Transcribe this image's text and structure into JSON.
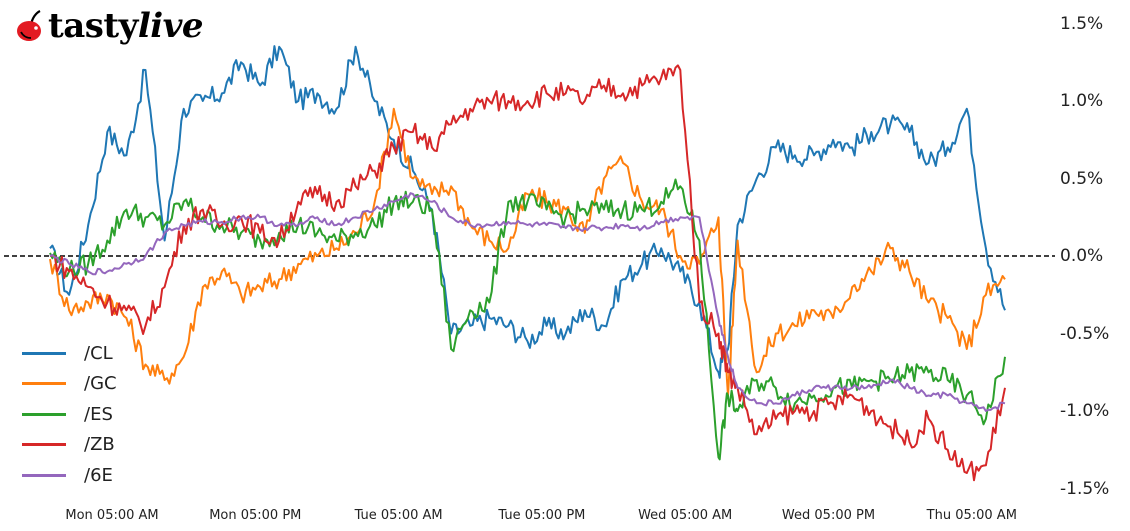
{
  "brand": {
    "name_part1": "tasty",
    "name_part2": "live",
    "cherry_color": "#e31b23"
  },
  "chart_data": {
    "type": "line",
    "title": "",
    "xlabel": "",
    "ylabel": "",
    "ylim": [
      -1.5,
      1.5
    ],
    "y_unit": "%",
    "grid": false,
    "legend_position": "lower left",
    "reference_line": {
      "y": 0.0,
      "style": "dashed",
      "color": "#000000"
    },
    "y_ticks": [
      "1.5%",
      "1.0%",
      "0.5%",
      "0.0%",
      "-0.5%",
      "-1.0%",
      "-1.5%"
    ],
    "x_ticks": [
      "Mon 05:00 AM",
      "Mon 05:00 PM",
      "Tue 05:00 AM",
      "Tue 05:00 PM",
      "Wed 05:00 AM",
      "Wed 05:00 PM",
      "Thu 05:00 AM"
    ],
    "x_tick_positions": [
      0.0625,
      0.2126,
      0.3627,
      0.5128,
      0.6629,
      0.813,
      0.9631
    ],
    "x": [
      0.0,
      0.02,
      0.04,
      0.06,
      0.08,
      0.1,
      0.12,
      0.14,
      0.16,
      0.18,
      0.2,
      0.22,
      0.24,
      0.26,
      0.28,
      0.3,
      0.32,
      0.34,
      0.36,
      0.38,
      0.4,
      0.42,
      0.44,
      0.46,
      0.48,
      0.5,
      0.52,
      0.54,
      0.56,
      0.58,
      0.6,
      0.62,
      0.64,
      0.66,
      0.68,
      0.7,
      0.71,
      0.72,
      0.74,
      0.76,
      0.78,
      0.8,
      0.82,
      0.84,
      0.86,
      0.88,
      0.9,
      0.92,
      0.94,
      0.96,
      0.98,
      1.0
    ],
    "series": [
      {
        "name": "/CL",
        "color": "#1f77b4",
        "values": [
          0.05,
          -0.25,
          0.2,
          0.8,
          0.65,
          1.2,
          0.1,
          0.95,
          1.0,
          1.05,
          1.25,
          1.1,
          1.35,
          1.0,
          1.05,
          0.95,
          1.35,
          1.0,
          0.75,
          0.55,
          0.3,
          -0.5,
          -0.45,
          -0.4,
          -0.45,
          -0.55,
          -0.45,
          -0.5,
          -0.35,
          -0.45,
          -0.15,
          -0.05,
          0.05,
          -0.1,
          -0.3,
          -0.75,
          -0.6,
          0.2,
          0.5,
          0.7,
          0.65,
          0.65,
          0.75,
          0.7,
          0.8,
          0.85,
          0.8,
          0.6,
          0.7,
          0.95,
          0.05,
          -0.35
        ]
      },
      {
        "name": "/GC",
        "color": "#ff7f0e",
        "values": [
          -0.02,
          -0.35,
          -0.3,
          -0.25,
          -0.4,
          -0.7,
          -0.8,
          -0.65,
          -0.2,
          -0.1,
          -0.25,
          -0.2,
          -0.15,
          -0.05,
          0.0,
          0.05,
          0.15,
          0.35,
          0.95,
          0.5,
          0.4,
          0.45,
          0.2,
          0.1,
          0.05,
          0.4,
          0.35,
          0.3,
          0.15,
          0.5,
          0.6,
          0.35,
          0.3,
          0.0,
          -0.05,
          0.25,
          -0.9,
          0.1,
          -0.75,
          -0.5,
          -0.45,
          -0.35,
          -0.4,
          -0.2,
          -0.1,
          0.05,
          -0.1,
          -0.3,
          -0.4,
          -0.6,
          -0.25,
          -0.15
        ]
      },
      {
        "name": "/ES",
        "color": "#2ca02c",
        "values": [
          0.02,
          -0.1,
          -0.05,
          0.1,
          0.3,
          0.25,
          0.2,
          0.35,
          0.25,
          0.2,
          0.15,
          0.1,
          0.15,
          0.2,
          0.15,
          0.1,
          0.15,
          0.2,
          0.35,
          0.35,
          0.3,
          -0.6,
          -0.35,
          -0.3,
          0.35,
          0.35,
          0.3,
          0.25,
          0.3,
          0.3,
          0.3,
          0.3,
          0.35,
          0.45,
          0.1,
          -1.3,
          -0.9,
          -1.0,
          -0.8,
          -0.85,
          -0.95,
          -0.9,
          -0.85,
          -0.85,
          -0.8,
          -0.8,
          -0.75,
          -0.75,
          -0.8,
          -0.9,
          -1.05,
          -0.65
        ]
      },
      {
        "name": "/ZB",
        "color": "#d62728",
        "values": [
          0.0,
          -0.1,
          -0.2,
          -0.3,
          -0.35,
          -0.45,
          -0.2,
          0.2,
          0.3,
          0.2,
          0.25,
          0.15,
          0.1,
          0.35,
          0.4,
          0.35,
          0.45,
          0.55,
          0.7,
          0.8,
          0.7,
          0.85,
          0.95,
          1.0,
          1.0,
          1.0,
          1.05,
          1.05,
          1.0,
          1.1,
          1.05,
          1.1,
          1.15,
          1.2,
          -0.3,
          -0.5,
          -0.75,
          -0.85,
          -1.15,
          -1.05,
          -1.0,
          -1.0,
          -0.95,
          -0.9,
          -1.0,
          -1.1,
          -1.2,
          -1.05,
          -1.25,
          -1.4,
          -1.35,
          -0.85
        ]
      },
      {
        "name": "/6E",
        "color": "#9467bd",
        "values": [
          0.0,
          -0.05,
          -0.1,
          -0.1,
          -0.05,
          0.0,
          0.15,
          0.2,
          0.22,
          0.22,
          0.25,
          0.25,
          0.2,
          0.2,
          0.25,
          0.2,
          0.25,
          0.3,
          0.35,
          0.4,
          0.35,
          0.25,
          0.2,
          0.2,
          0.22,
          0.2,
          0.2,
          0.18,
          0.18,
          0.18,
          0.2,
          0.18,
          0.22,
          0.25,
          0.25,
          -0.4,
          -0.65,
          -0.85,
          -0.95,
          -0.95,
          -0.9,
          -0.85,
          -0.85,
          -0.85,
          -0.85,
          -0.8,
          -0.85,
          -0.9,
          -0.9,
          -0.95,
          -1.0,
          -0.95
        ]
      }
    ]
  }
}
